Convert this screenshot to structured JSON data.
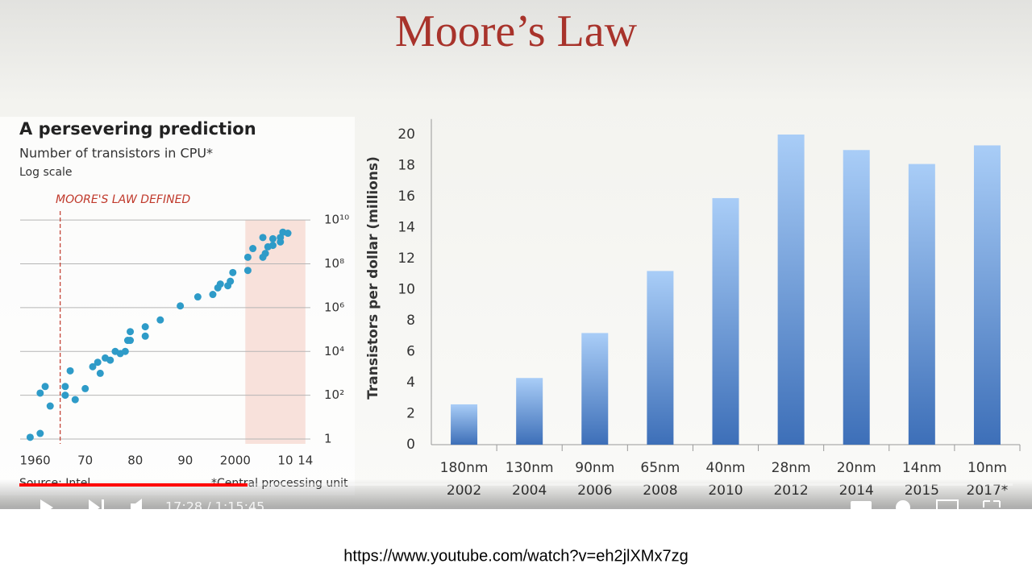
{
  "title": "Moore’s Law",
  "chart_data": [
    {
      "type": "scatter",
      "title": "A persevering prediction",
      "subtitle": "Number of transistors in CPU*",
      "scale_note": "Log scale",
      "annotation": "MOORE'S LAW DEFINED",
      "vline": 1965,
      "span": [
        2002,
        2014
      ],
      "source": "Source: Intel",
      "footnote": "*Central processing unit",
      "log_y": true,
      "grid": true,
      "color": "#2e9bc8",
      "xlim": [
        1957,
        2015
      ],
      "xticks": [
        1960,
        {
          "value": 1970,
          "label": "70"
        },
        {
          "value": 1980,
          "label": "80"
        },
        {
          "value": 1990,
          "label": "90"
        },
        2000,
        {
          "value": 2010,
          "label": "10"
        },
        {
          "value": 2014,
          "label": "14"
        }
      ],
      "ylim": [
        0.6,
        20000000000
      ],
      "yticks": [
        1,
        {
          "value": 100,
          "label": "10²"
        },
        {
          "value": 10000,
          "label": "10⁴"
        },
        {
          "value": 1000000,
          "label": "10⁶"
        },
        {
          "value": 100000000,
          "label": "10⁸"
        },
        {
          "value": 10000000000,
          "label": "10¹⁰"
        }
      ],
      "x": [
        1959,
        1961,
        1961,
        1962,
        1963,
        1966,
        1966,
        1967,
        1968,
        1970,
        1971.5,
        1972.5,
        1973,
        1974,
        1975,
        1976,
        1977,
        1978,
        1978.5,
        1979,
        1979,
        1982,
        1982,
        1985,
        1989,
        1992.5,
        1995.5,
        1996.5,
        1997,
        1998.5,
        1999,
        1999.5,
        2002.5,
        2002.5,
        2003.5,
        2005.5,
        2005.5,
        2006,
        2006.5,
        2007.5,
        2007.5,
        2009,
        2009,
        2009.5,
        2010.5
      ],
      "values": [
        1.2,
        1.8,
        125,
        250,
        32,
        100,
        250,
        1300,
        63,
        200,
        2000,
        3200,
        1000,
        5000,
        4000,
        10000,
        8000,
        10000,
        32000,
        32000,
        80000,
        134000,
        50000,
        275000,
        1200000,
        3100000,
        4000000,
        8000000,
        12000000,
        10000000,
        16000000,
        40000000,
        50000000,
        200000000,
        500000000,
        200000000,
        1600000000,
        300000000,
        600000000,
        1400000000,
        700000000,
        1600000000,
        1000000000,
        2800000000,
        2500000000
      ]
    },
    {
      "type": "bar",
      "y_label": "Transistors per dollar (millions)",
      "categories": [
        [
          "180nm",
          "2002"
        ],
        [
          "130nm",
          "2004"
        ],
        [
          "90nm",
          "2006"
        ],
        [
          "65nm",
          "2008"
        ],
        [
          "40nm",
          "2010"
        ],
        [
          "28nm",
          "2012"
        ],
        [
          "20nm",
          "2014"
        ],
        [
          "14nm",
          "2015"
        ],
        [
          "10nm",
          "2017*"
        ]
      ],
      "values": [
        2.6,
        4.3,
        7.2,
        11.2,
        15.9,
        20.0,
        19.0,
        18.1,
        19.3
      ],
      "ylim": [
        0,
        21
      ],
      "yticks": [
        0,
        2,
        4,
        6,
        8,
        10,
        12,
        14,
        16,
        18,
        20
      ],
      "color_top": "#a9cdf7",
      "color_bottom": "#3d6fb8"
    }
  ],
  "player": {
    "time": "17:28 / 1:15:45"
  },
  "url": "https://www.youtube.com/watch?v=eh2jlXMx7zg"
}
